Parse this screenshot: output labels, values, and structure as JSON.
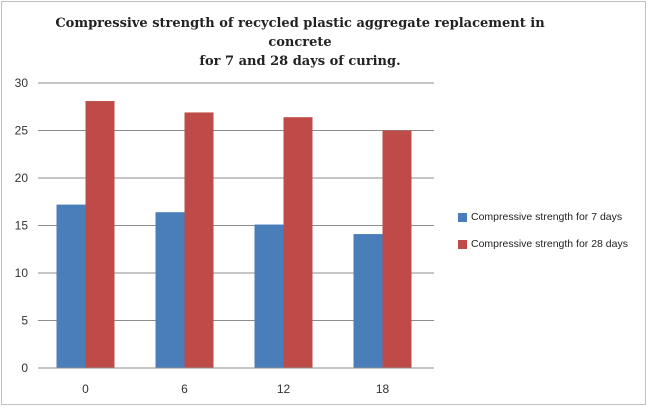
{
  "chart_data": {
    "type": "bar",
    "title": "Compressive strength of recycled plastic  aggregate replacement  in concrete",
    "subtitle": "for  7 and 28 days of curing.",
    "xlabel": "",
    "ylabel": "",
    "categories": [
      "0",
      "6",
      "12",
      "18"
    ],
    "series": [
      {
        "name": "Compressive strength  for 7 days",
        "color": "#4a7ebb",
        "values": [
          17.2,
          16.4,
          15.1,
          14.1
        ]
      },
      {
        "name": "Compressive strength for 28 days",
        "color": "#be4b48",
        "values": [
          28.1,
          26.9,
          26.4,
          25.0
        ]
      }
    ],
    "ylim": [
      0,
      30
    ],
    "yticks": [
      "0",
      "5",
      "10",
      "15",
      "20",
      "25",
      "30"
    ],
    "grid": true,
    "legend_position": "right"
  }
}
